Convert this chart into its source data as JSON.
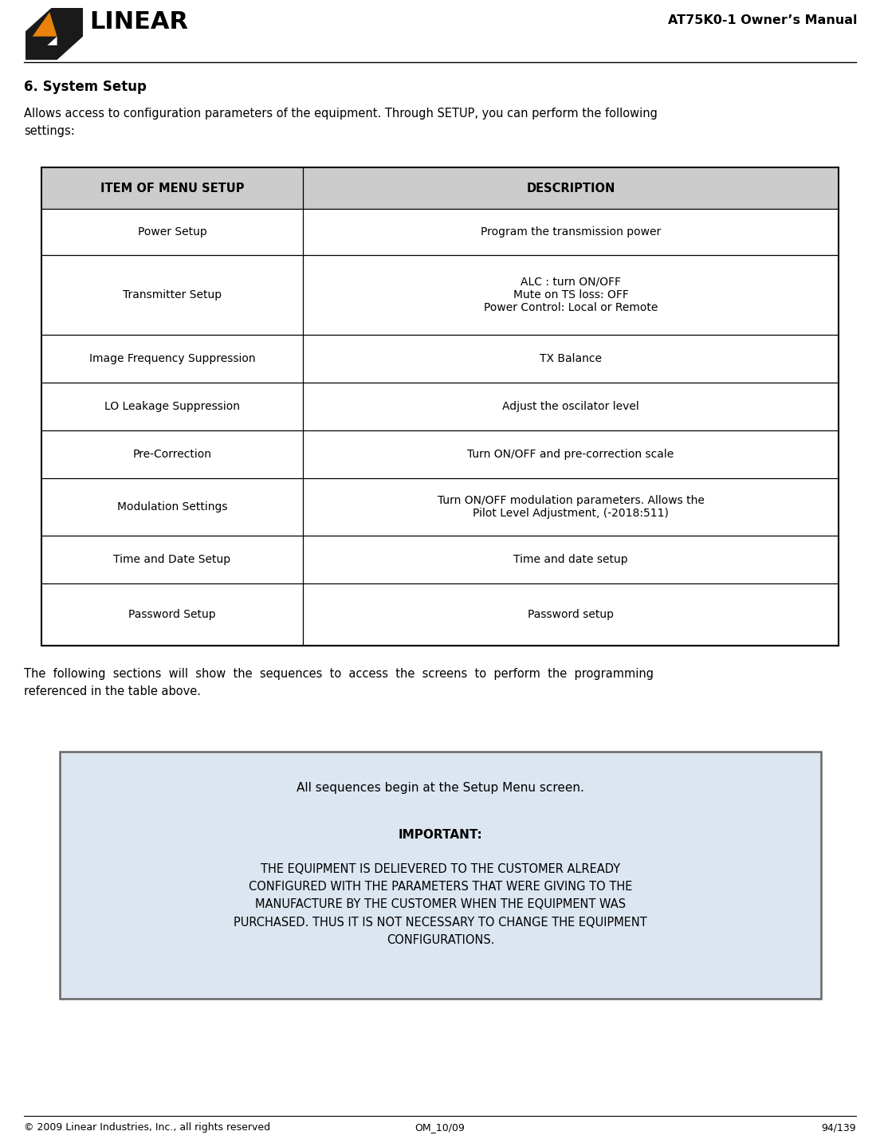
{
  "title": "AT75K0-1 Owner’s Manual",
  "section_title": "6. System Setup",
  "intro_text": "Allows access to configuration parameters of the equipment. Through SETUP, you can perform the following\nsettings:",
  "table_header": [
    "ITEM OF MENU SETUP",
    "DESCRIPTION"
  ],
  "table_rows": [
    [
      "Power Setup",
      "Program the transmission power"
    ],
    [
      "Transmitter Setup",
      "ALC : turn ON/OFF\nMute on TS loss: OFF\nPower Control: Local or Remote"
    ],
    [
      "Image Frequency Suppression",
      "TX Balance"
    ],
    [
      "LO Leakage Suppression",
      "Adjust the oscilator level"
    ],
    [
      "Pre-Correction",
      "Turn ON/OFF and pre-correction scale"
    ],
    [
      "Modulation Settings",
      "Turn ON/OFF modulation parameters. Allows the\nPilot Level Adjustment, (-2018:511)"
    ],
    [
      "Time and Date Setup",
      "Time and date setup"
    ],
    [
      "Password Setup",
      "Password setup"
    ]
  ],
  "following_text": "The  following  sections  will  show  the  sequences  to  access  the  screens  to  perform  the  programming\nreferenced in the table above.",
  "box_line1": "All sequences begin at the Setup Menu screen.",
  "box_line2": "IMPORTANT:",
  "box_line3": "THE EQUIPMENT IS DELIEVERED TO THE CUSTOMER ALREADY\nCONFIGURED WITH THE PARAMETERS THAT WERE GIVING TO THE\nMANUFACTURE BY THE CUSTOMER WHEN THE EQUIPMENT WAS\nPURCHASED. THUS IT IS NOT NECESSARY TO CHANGE THE EQUIPMENT\nCONFIGURATIONS.",
  "footer_left": "© 2009 Linear Industries, Inc., all rights reserved",
  "footer_center": "OM_10/09",
  "footer_right": "94/139",
  "bg_color": "#ffffff",
  "table_header_bg": "#cccccc",
  "table_border_color": "#000000",
  "box_bg": "#dce6f1",
  "box_border": "#666666",
  "logo_orange": "#E8820A",
  "logo_black": "#1a1a1a"
}
